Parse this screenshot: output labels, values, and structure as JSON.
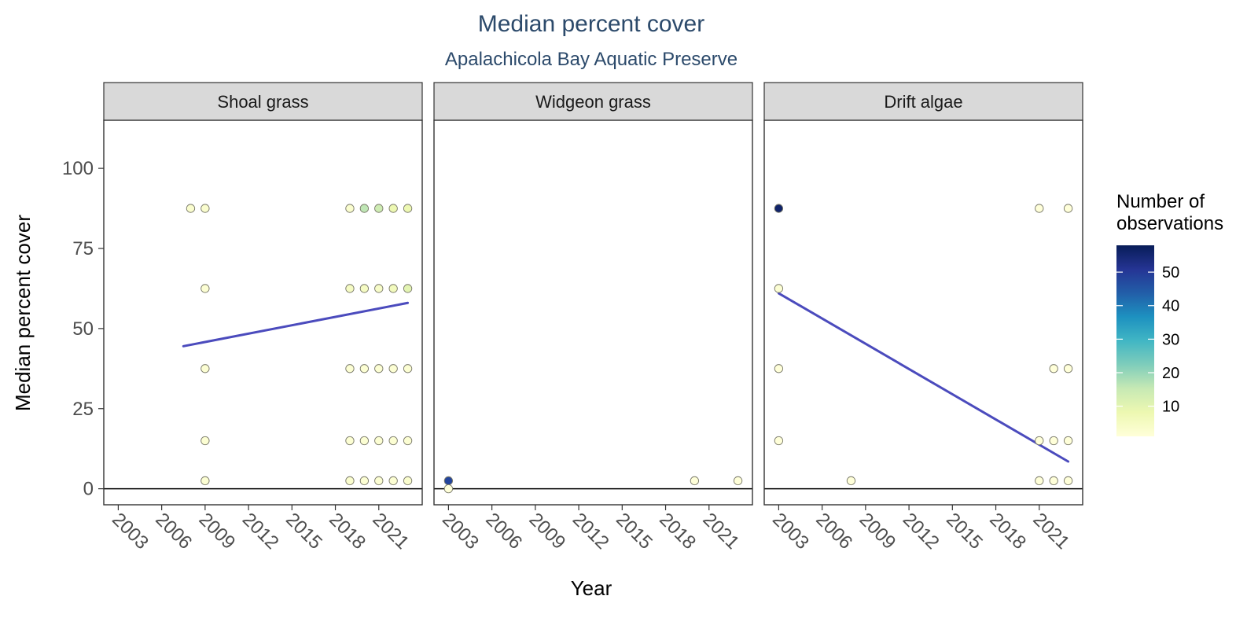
{
  "chart_data": {
    "type": "scatter",
    "title": "Median percent cover",
    "subtitle": "Apalachicola Bay Aquatic Preserve",
    "xlabel": "Year",
    "ylabel": "Median percent cover",
    "xlim": [
      2002,
      2024
    ],
    "ylim": [
      -5,
      115
    ],
    "x_ticks": [
      2003,
      2006,
      2009,
      2012,
      2015,
      2018,
      2021
    ],
    "y_ticks": [
      0,
      25,
      50,
      75,
      100
    ],
    "legend": {
      "title_line1": "Number of",
      "title_line2": "observations",
      "ticks": [
        10,
        20,
        30,
        40,
        50
      ],
      "range": [
        1,
        58
      ],
      "colors": [
        "#ffffd9",
        "#edf8b1",
        "#c7e9b4",
        "#7fcdbb",
        "#41b6c4",
        "#1d91c0",
        "#225ea8",
        "#253494",
        "#081d58"
      ],
      "placement": "right"
    },
    "trend_color": "#4b4bbd",
    "panels": [
      {
        "name": "Shoal grass",
        "points": [
          {
            "x": 2008,
            "y": 87.5,
            "n": 3
          },
          {
            "x": 2009,
            "y": 87.5,
            "n": 3
          },
          {
            "x": 2009,
            "y": 62.5,
            "n": 2
          },
          {
            "x": 2009,
            "y": 37.5,
            "n": 2
          },
          {
            "x": 2009,
            "y": 15,
            "n": 2
          },
          {
            "x": 2009,
            "y": 2.5,
            "n": 2
          },
          {
            "x": 2019,
            "y": 87.5,
            "n": 3
          },
          {
            "x": 2020,
            "y": 87.5,
            "n": 16
          },
          {
            "x": 2021,
            "y": 87.5,
            "n": 14
          },
          {
            "x": 2022,
            "y": 87.5,
            "n": 8
          },
          {
            "x": 2023,
            "y": 87.5,
            "n": 8
          },
          {
            "x": 2019,
            "y": 62.5,
            "n": 5
          },
          {
            "x": 2020,
            "y": 62.5,
            "n": 5
          },
          {
            "x": 2021,
            "y": 62.5,
            "n": 4
          },
          {
            "x": 2022,
            "y": 62.5,
            "n": 6
          },
          {
            "x": 2023,
            "y": 62.5,
            "n": 10
          },
          {
            "x": 2019,
            "y": 37.5,
            "n": 2
          },
          {
            "x": 2020,
            "y": 37.5,
            "n": 2
          },
          {
            "x": 2021,
            "y": 37.5,
            "n": 2
          },
          {
            "x": 2022,
            "y": 37.5,
            "n": 2
          },
          {
            "x": 2023,
            "y": 37.5,
            "n": 2
          },
          {
            "x": 2019,
            "y": 15,
            "n": 2
          },
          {
            "x": 2020,
            "y": 15,
            "n": 2
          },
          {
            "x": 2021,
            "y": 15,
            "n": 2
          },
          {
            "x": 2022,
            "y": 15,
            "n": 2
          },
          {
            "x": 2023,
            "y": 15,
            "n": 2
          },
          {
            "x": 2019,
            "y": 2.5,
            "n": 3
          },
          {
            "x": 2020,
            "y": 2.5,
            "n": 2
          },
          {
            "x": 2021,
            "y": 2.5,
            "n": 2
          },
          {
            "x": 2022,
            "y": 2.5,
            "n": 2
          },
          {
            "x": 2023,
            "y": 2.5,
            "n": 3
          }
        ],
        "trend": [
          {
            "x": 2007.5,
            "y": 44.5
          },
          {
            "x": 2023,
            "y": 58
          }
        ]
      },
      {
        "name": "Widgeon grass",
        "points": [
          {
            "x": 2003,
            "y": 2.5,
            "n": 48
          },
          {
            "x": 2003,
            "y": 0,
            "n": 1
          },
          {
            "x": 2020,
            "y": 2.5,
            "n": 1
          },
          {
            "x": 2023,
            "y": 2.5,
            "n": 1
          }
        ],
        "trend": []
      },
      {
        "name": "Drift algae",
        "points": [
          {
            "x": 2003,
            "y": 87.5,
            "n": 56
          },
          {
            "x": 2003,
            "y": 62.5,
            "n": 2
          },
          {
            "x": 2003,
            "y": 37.5,
            "n": 1
          },
          {
            "x": 2003,
            "y": 15,
            "n": 1
          },
          {
            "x": 2008,
            "y": 2.5,
            "n": 1
          },
          {
            "x": 2021,
            "y": 87.5,
            "n": 1
          },
          {
            "x": 2023,
            "y": 87.5,
            "n": 1
          },
          {
            "x": 2022,
            "y": 37.5,
            "n": 1
          },
          {
            "x": 2023,
            "y": 37.5,
            "n": 1
          },
          {
            "x": 2021,
            "y": 15,
            "n": 1
          },
          {
            "x": 2022,
            "y": 15,
            "n": 1
          },
          {
            "x": 2023,
            "y": 15,
            "n": 1
          },
          {
            "x": 2021,
            "y": 2.5,
            "n": 1
          },
          {
            "x": 2022,
            "y": 2.5,
            "n": 1
          },
          {
            "x": 2023,
            "y": 2.5,
            "n": 1
          }
        ],
        "trend": [
          {
            "x": 2003,
            "y": 61
          },
          {
            "x": 2023,
            "y": 8.5
          }
        ]
      }
    ]
  }
}
